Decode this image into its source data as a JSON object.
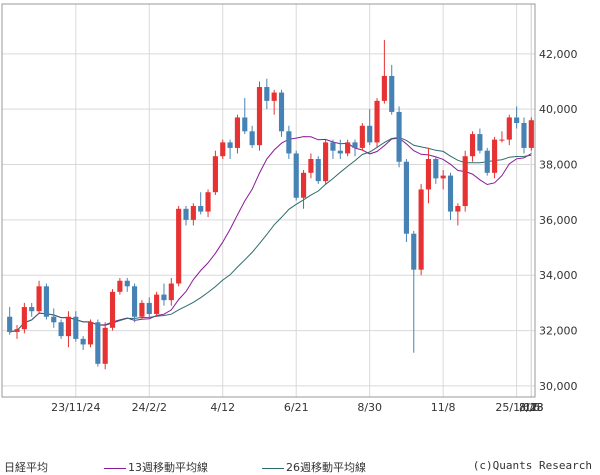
{
  "legend": {
    "price_label": "日経平均",
    "ma13_label": "13週移動平均線",
    "ma26_label": "26週移動平均線",
    "credit": "(c)Quants Research"
  },
  "colors": {
    "up": "#e63232",
    "down": "#4682b4",
    "ma13": "#8b1a9a",
    "ma26": "#2e6b6b",
    "grid": "#d9d9d9",
    "frame": "#999999"
  },
  "chart_data": {
    "type": "candlestick",
    "title": "",
    "xlabel": "",
    "ylabel": "",
    "ylim": [
      29600,
      43800
    ],
    "yticks": [
      30000,
      32000,
      34000,
      36000,
      38000,
      40000,
      42000
    ],
    "ytick_labels": [
      "30,000",
      "32,000",
      "34,000",
      "36,000",
      "38,000",
      "40,000",
      "42,000"
    ],
    "xtick_labels": [
      "23/11/24",
      "24/2/2",
      "4/12",
      "6/21",
      "8/30",
      "11/8",
      "25/1/17",
      "3/28",
      "6/6",
      "8/13"
    ],
    "xtick_index": [
      9,
      19,
      29,
      39,
      49,
      59,
      69,
      79,
      89,
      99
    ],
    "grid": true,
    "candles": [
      [
        32500,
        32850,
        31850,
        31950
      ],
      [
        31950,
        32200,
        31700,
        32050
      ],
      [
        32050,
        33000,
        31900,
        32850
      ],
      [
        32850,
        33000,
        32500,
        32700
      ],
      [
        32700,
        33800,
        32600,
        33600
      ],
      [
        33600,
        33700,
        32400,
        32500
      ],
      [
        32500,
        32800,
        32100,
        32300
      ],
      [
        32300,
        32400,
        31700,
        31800
      ],
      [
        31800,
        32700,
        31400,
        32500
      ],
      [
        32500,
        32700,
        31600,
        31700
      ],
      [
        31700,
        31800,
        31300,
        31500
      ],
      [
        31500,
        32400,
        31400,
        32300
      ],
      [
        32300,
        32400,
        30700,
        30800
      ],
      [
        30800,
        32300,
        30600,
        32100
      ],
      [
        32100,
        33500,
        32000,
        33400
      ],
      [
        33400,
        33900,
        33300,
        33800
      ],
      [
        33800,
        33900,
        33400,
        33600
      ],
      [
        33600,
        33700,
        32300,
        32500
      ],
      [
        32500,
        33100,
        32400,
        33000
      ],
      [
        33000,
        33200,
        32500,
        32600
      ],
      [
        32600,
        33400,
        32500,
        33300
      ],
      [
        33300,
        33700,
        32900,
        33100
      ],
      [
        33100,
        33900,
        32900,
        33700
      ],
      [
        33700,
        36500,
        33600,
        36400
      ],
      [
        36400,
        36500,
        35800,
        36000
      ],
      [
        36000,
        36600,
        35800,
        36500
      ],
      [
        36500,
        37000,
        36200,
        36300
      ],
      [
        36300,
        37100,
        36100,
        37000
      ],
      [
        37000,
        38500,
        36900,
        38300
      ],
      [
        38300,
        38900,
        38200,
        38800
      ],
      [
        38800,
        38900,
        38200,
        38600
      ],
      [
        38600,
        39800,
        38400,
        39700
      ],
      [
        39700,
        40400,
        39100,
        39200
      ],
      [
        39200,
        39400,
        38600,
        38700
      ],
      [
        38700,
        41000,
        38500,
        40800
      ],
      [
        40800,
        41100,
        40000,
        40300
      ],
      [
        40300,
        40700,
        39800,
        40600
      ],
      [
        40600,
        40700,
        39000,
        39200
      ],
      [
        39200,
        39400,
        38200,
        38400
      ],
      [
        38400,
        38500,
        36700,
        36800
      ],
      [
        36800,
        37800,
        36400,
        37700
      ],
      [
        37700,
        38400,
        37500,
        38200
      ],
      [
        38200,
        38300,
        37300,
        37400
      ],
      [
        37400,
        38900,
        37300,
        38800
      ],
      [
        38800,
        38900,
        38200,
        38500
      ],
      [
        38500,
        38900,
        38200,
        38400
      ],
      [
        38400,
        38900,
        38300,
        38800
      ],
      [
        38800,
        38900,
        38300,
        38600
      ],
      [
        38600,
        39500,
        38500,
        39400
      ],
      [
        39400,
        40000,
        38700,
        38800
      ],
      [
        38800,
        40400,
        38600,
        40300
      ],
      [
        40300,
        42500,
        40200,
        41200
      ],
      [
        41200,
        41600,
        39800,
        39900
      ],
      [
        39900,
        40100,
        37900,
        38100
      ],
      [
        38100,
        38200,
        35200,
        35500
      ],
      [
        35500,
        35600,
        31200,
        34200
      ],
      [
        34200,
        37300,
        34000,
        37100
      ],
      [
        37100,
        38600,
        36600,
        38200
      ],
      [
        38200,
        38300,
        37300,
        37500
      ],
      [
        37500,
        37800,
        37100,
        37600
      ],
      [
        37600,
        37700,
        36000,
        36300
      ],
      [
        36300,
        36600,
        35800,
        36500
      ],
      [
        36500,
        38500,
        36300,
        38300
      ],
      [
        38300,
        39200,
        38100,
        39100
      ],
      [
        39100,
        39300,
        38400,
        38500
      ],
      [
        38500,
        38600,
        37600,
        37700
      ],
      [
        37700,
        39000,
        37500,
        38900
      ],
      [
        38900,
        39200,
        38800,
        38900
      ],
      [
        38900,
        39800,
        38700,
        39700
      ],
      [
        39700,
        40100,
        39300,
        39500
      ],
      [
        39500,
        39700,
        38400,
        38600
      ],
      [
        38600,
        39700,
        38500,
        39600
      ]
    ],
    "ma13": [],
    "ma26": []
  }
}
